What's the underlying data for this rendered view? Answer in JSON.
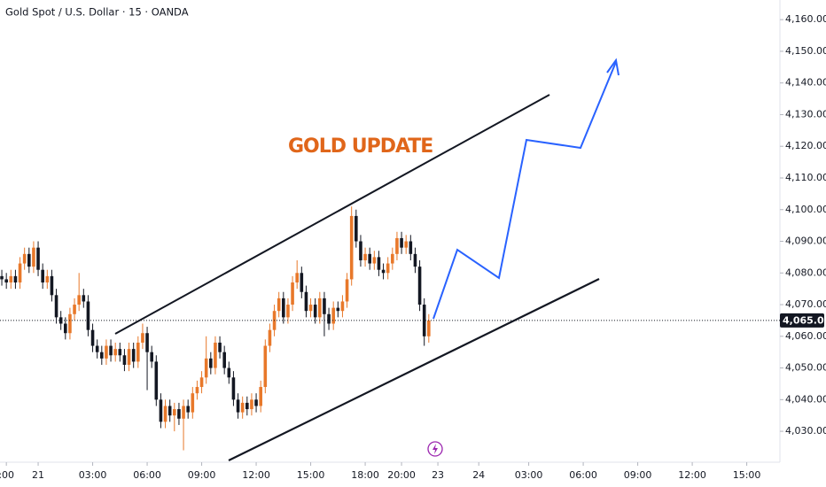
{
  "chart_data": {
    "type": "candlestick",
    "title": "Gold Spot / U.S. Dollar · 15 · OANDA",
    "annotation": "GOLD UPDATE",
    "up_color": "#e8782a",
    "down_color": "#131722",
    "x": [
      -8,
      -7,
      -6,
      -5,
      -4,
      -3,
      -2,
      -1,
      0,
      1,
      2,
      3,
      4,
      5,
      6,
      7,
      8,
      9,
      10,
      11,
      12,
      13,
      14,
      15,
      16,
      17,
      18,
      19,
      20,
      21,
      22,
      23,
      24,
      25,
      26,
      27,
      28,
      29,
      30,
      31,
      32,
      33,
      34,
      35,
      36,
      37,
      38,
      39,
      40,
      41,
      42,
      43,
      44,
      45,
      46,
      47,
      48,
      49,
      50,
      51,
      52,
      53,
      54,
      55,
      56,
      57,
      58,
      59,
      60,
      61,
      62,
      63,
      64,
      65,
      66,
      67,
      68,
      69,
      70,
      71,
      72,
      73,
      74,
      75,
      76,
      77,
      78,
      79,
      80,
      81,
      82,
      83,
      84,
      85,
      86
    ],
    "open": [
      4079,
      4078,
      4077,
      4079,
      4077,
      4083,
      4086,
      4082,
      4088,
      4081,
      4077,
      4079,
      4073,
      4066,
      4064,
      4061,
      4067,
      4070,
      4073,
      4071,
      4062,
      4057,
      4055,
      4053,
      4057,
      4054,
      4056,
      4054,
      4051,
      4056,
      4052,
      4058,
      4061,
      4055,
      4052,
      4040,
      4033,
      4038,
      4035,
      4037,
      4034,
      4038,
      4036,
      4042,
      4044,
      4047,
      4053,
      4050,
      4058,
      4055,
      4050,
      4047,
      4040,
      4036,
      4039,
      4037,
      4040,
      4038,
      4044,
      4057,
      4062,
      4068,
      4072,
      4066,
      4070,
      4077,
      4080,
      4074,
      4068,
      4070,
      4066,
      4072,
      4067,
      4064,
      4069,
      4068,
      4071,
      4078,
      4098,
      4090,
      4084,
      4086,
      4083,
      4085,
      4081,
      4080,
      4083,
      4086,
      4091,
      4088,
      4090,
      4086,
      4082,
      4070,
      4060
    ],
    "high": [
      4081,
      4080,
      4081,
      4081,
      4085,
      4088,
      4088,
      4090,
      4090,
      4083,
      4081,
      4081,
      4075,
      4068,
      4066,
      4069,
      4072,
      4080,
      4075,
      4073,
      4064,
      4059,
      4057,
      4059,
      4059,
      4058,
      4058,
      4056,
      4058,
      4058,
      4060,
      4064,
      4063,
      4057,
      4054,
      4042,
      4040,
      4040,
      4039,
      4039,
      4040,
      4040,
      4044,
      4046,
      4049,
      4060,
      4055,
      4060,
      4060,
      4057,
      4052,
      4049,
      4042,
      4041,
      4041,
      4042,
      4042,
      4046,
      4059,
      4064,
      4070,
      4074,
      4074,
      4072,
      4079,
      4084,
      4082,
      4076,
      4072,
      4072,
      4074,
      4074,
      4069,
      4071,
      4071,
      4073,
      4080,
      4101,
      4100,
      4092,
      4088,
      4088,
      4087,
      4087,
      4083,
      4085,
      4088,
      4093,
      4093,
      4092,
      4092,
      4088,
      4084,
      4072,
      4067
    ],
    "low": [
      4076,
      4075,
      4075,
      4075,
      4075,
      4081,
      4080,
      4080,
      4079,
      4075,
      4075,
      4071,
      4064,
      4062,
      4059,
      4059,
      4065,
      4068,
      4069,
      4060,
      4055,
      4053,
      4051,
      4051,
      4052,
      4052,
      4052,
      4049,
      4049,
      4050,
      4050,
      4056,
      4043,
      4050,
      4038,
      4031,
      4031,
      4033,
      4030,
      4032,
      4024,
      4034,
      4034,
      4040,
      4042,
      4045,
      4048,
      4048,
      4053,
      4048,
      4045,
      4038,
      4034,
      4034,
      4035,
      4035,
      4036,
      4036,
      4042,
      4055,
      4060,
      4066,
      4064,
      4064,
      4068,
      4075,
      4072,
      4066,
      4066,
      4064,
      4064,
      4060,
      4062,
      4062,
      4066,
      4066,
      4069,
      4076,
      4088,
      4082,
      4082,
      4081,
      4081,
      4079,
      4078,
      4078,
      4081,
      4084,
      4086,
      4086,
      4084,
      4080,
      4068,
      4057,
      4058
    ],
    "close": [
      4078,
      4077,
      4079,
      4077,
      4083,
      4086,
      4082,
      4088,
      4081,
      4077,
      4079,
      4073,
      4066,
      4064,
      4061,
      4067,
      4070,
      4073,
      4071,
      4062,
      4057,
      4055,
      4053,
      4057,
      4054,
      4056,
      4054,
      4051,
      4056,
      4052,
      4058,
      4061,
      4055,
      4052,
      4040,
      4033,
      4038,
      4035,
      4037,
      4034,
      4038,
      4036,
      4042,
      4044,
      4047,
      4053,
      4050,
      4058,
      4055,
      4050,
      4047,
      4040,
      4036,
      4039,
      4037,
      4040,
      4038,
      4044,
      4057,
      4062,
      4068,
      4072,
      4066,
      4070,
      4077,
      4080,
      4074,
      4068,
      4070,
      4066,
      4072,
      4067,
      4064,
      4069,
      4068,
      4071,
      4078,
      4098,
      4090,
      4084,
      4086,
      4083,
      4085,
      4081,
      4080,
      4083,
      4086,
      4091,
      4088,
      4090,
      4086,
      4082,
      4070,
      4060,
      4065.01
    ],
    "current_price": {
      "value": 4065.01,
      "label": "4,065.010"
    },
    "xlim": [
      -8.4,
      163.3
    ],
    "xticks": [
      {
        "value": -7,
        "label": ":00"
      },
      {
        "value": 0,
        "label": "21"
      },
      {
        "value": 12,
        "label": "03:00"
      },
      {
        "value": 24,
        "label": "06:00"
      },
      {
        "value": 36,
        "label": "09:00"
      },
      {
        "value": 48,
        "label": "12:00"
      },
      {
        "value": 60,
        "label": "15:00"
      },
      {
        "value": 72,
        "label": "18:00"
      },
      {
        "value": 80,
        "label": "20:00"
      },
      {
        "value": 88,
        "label": "23"
      },
      {
        "value": 97,
        "label": "24"
      },
      {
        "value": 108,
        "label": "03:00"
      },
      {
        "value": 120,
        "label": "06:00"
      },
      {
        "value": 132,
        "label": "09:00"
      },
      {
        "value": 144,
        "label": "12:00"
      },
      {
        "value": 156,
        "label": "15:00"
      }
    ],
    "ylim": [
      4020.8,
      4166.2
    ],
    "yticks": [
      {
        "value": 4030,
        "label": "4,030.000"
      },
      {
        "value": 4040,
        "label": "4,040.000"
      },
      {
        "value": 4050,
        "label": "4,050.000"
      },
      {
        "value": 4060,
        "label": "4,060.000"
      },
      {
        "value": 4070,
        "label": "4,070.000"
      },
      {
        "value": 4080,
        "label": "4,080.000"
      },
      {
        "value": 4090,
        "label": "4,090.000"
      },
      {
        "value": 4100,
        "label": "4,100.000"
      },
      {
        "value": 4110,
        "label": "4,110.000"
      },
      {
        "value": 4120,
        "label": "4,120.000"
      },
      {
        "value": 4130,
        "label": "4,130.000"
      },
      {
        "value": 4140,
        "label": "4,140.000"
      },
      {
        "value": 4150,
        "label": "4,150.000"
      },
      {
        "value": 4160,
        "label": "4,160.000"
      }
    ]
  }
}
